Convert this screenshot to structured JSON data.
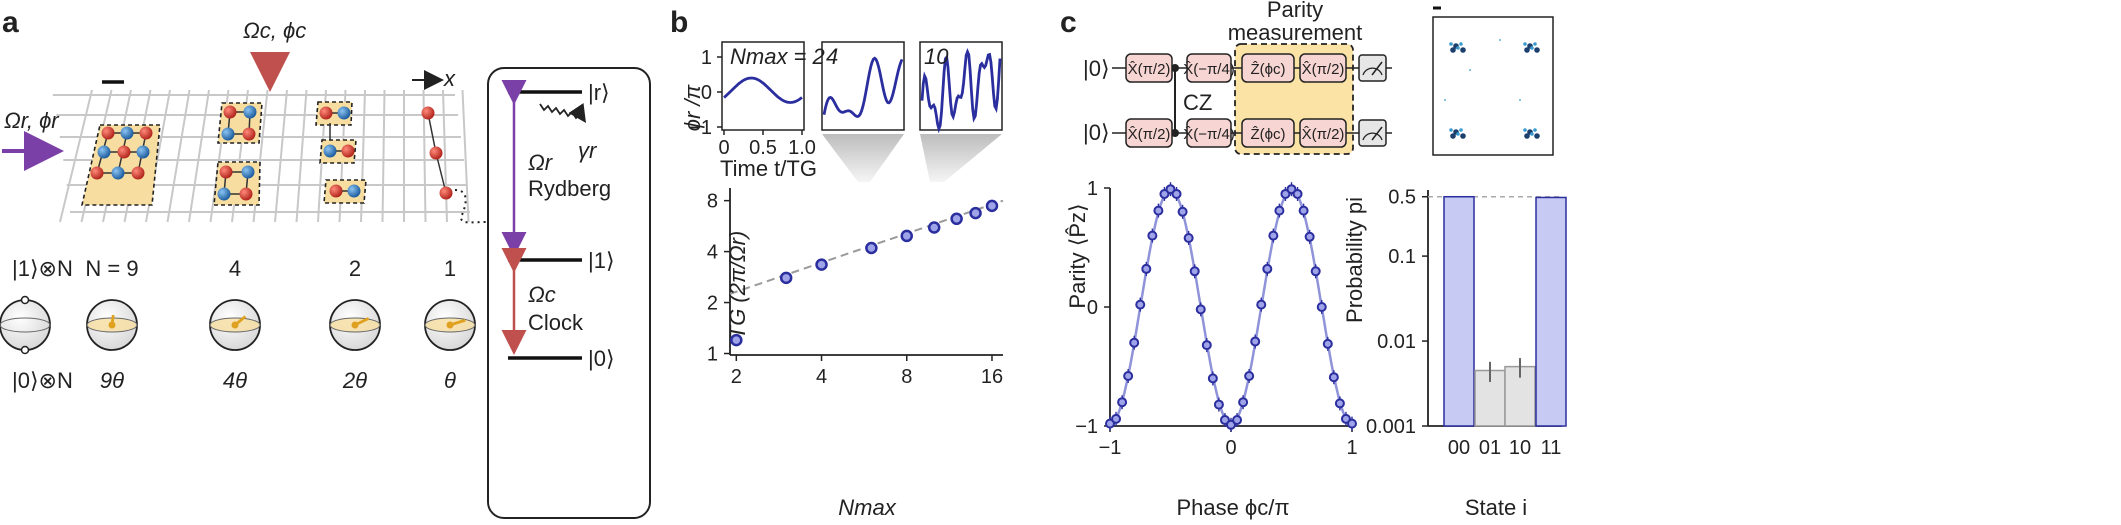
{
  "panel_labels": {
    "a": "a",
    "b": "b",
    "c": "c"
  },
  "panel_a": {
    "control_label": "Ωc, ϕc",
    "rydberg_drive_label": "Ωr, ϕr",
    "x_axis_label": "x",
    "bloch_top_label": "|1⟩⊗N",
    "bloch_bottom_label": "|0⟩⊗N",
    "cluster_sizes": [
      "N = 9",
      "4",
      "2",
      "1"
    ],
    "phase_labels": [
      "9θ",
      "4θ",
      "2θ",
      "θ"
    ],
    "level_r": "|r⟩",
    "level_1": "|1⟩",
    "level_0": "|0⟩",
    "decay_label": "γr",
    "rydberg_coupling": "Ωr",
    "rydberg_name": "Rydberg",
    "clock_coupling": "Ωc",
    "clock_name": "Clock",
    "colors": {
      "rydberg": "#7b3fa8",
      "clock": "#c0504d",
      "atom_red": "#c0392b",
      "atom_blue": "#2f7fc1",
      "highlight": "#f7deA0"
    }
  },
  "panel_b": {
    "top_ylabel": "ϕr /π",
    "top_xlabel": "Time t/TG",
    "top_panels": [
      "Nmax = 2",
      "4",
      "10"
    ],
    "top_yticks": [
      "1",
      "0",
      "−1"
    ],
    "top_xticks": [
      "0",
      "0.5",
      "1.0"
    ],
    "chart_data": {
      "type": "scatter",
      "title": "",
      "xlabel": "Nmax",
      "ylabel": "TG (2π/Ωr)",
      "xscale": "log",
      "yscale": "log",
      "xlim": [
        1.9,
        17.5
      ],
      "ylim": [
        0.98,
        9.5
      ],
      "xticks": [
        2,
        4,
        8,
        16
      ],
      "yticks": [
        1,
        2,
        4,
        8
      ],
      "series": [
        {
          "name": "data",
          "x": [
            2,
            3,
            4,
            6,
            8,
            10,
            12,
            14,
            16
          ],
          "y": [
            1.2,
            2.8,
            3.35,
            4.2,
            4.95,
            5.55,
            6.25,
            6.75,
            7.45
          ]
        },
        {
          "name": "fit",
          "style": "dashed",
          "x": [
            1.9,
            17.5
          ],
          "y": [
            2.25,
            8.0
          ]
        }
      ]
    }
  },
  "panel_c": {
    "parity_title": "Parity\nmeasurement",
    "parity_title_line1": "Parity",
    "parity_title_line2": "measurement",
    "input_state_top": "|0⟩",
    "input_state_bottom": "|0⟩",
    "gates_row": [
      "X̂(π/2)",
      "X̂(−π/4)",
      "Ẑ(ϕc)",
      "X̂(π/2)"
    ],
    "cz_label": "CZ",
    "parity_chart": {
      "type": "scatter",
      "xlabel": "Phase ϕc/π",
      "ylabel": "Parity ⟨P̂z⟩",
      "xlim": [
        -1,
        1
      ],
      "ylim": [
        -1,
        1
      ],
      "xticks": [
        -1,
        0,
        1
      ],
      "yticks": [
        -1,
        0,
        1
      ],
      "x": [
        -1.0,
        -0.95,
        -0.9,
        -0.85,
        -0.8,
        -0.75,
        -0.7,
        -0.65,
        -0.6,
        -0.55,
        -0.5,
        -0.45,
        -0.4,
        -0.35,
        -0.3,
        -0.25,
        -0.2,
        -0.15,
        -0.1,
        -0.05,
        0.0,
        0.05,
        0.1,
        0.15,
        0.2,
        0.25,
        0.3,
        0.35,
        0.4,
        0.45,
        0.5,
        0.55,
        0.6,
        0.65,
        0.7,
        0.75,
        0.8,
        0.85,
        0.9,
        0.95,
        1.0
      ],
      "y": [
        -0.98,
        -0.94,
        -0.8,
        -0.58,
        -0.3,
        0.02,
        0.32,
        0.6,
        0.81,
        0.95,
        0.99,
        0.95,
        0.8,
        0.58,
        0.3,
        -0.02,
        -0.32,
        -0.6,
        -0.82,
        -0.95,
        -0.99,
        -0.95,
        -0.8,
        -0.58,
        -0.29,
        0.02,
        0.32,
        0.6,
        0.81,
        0.95,
        0.99,
        0.95,
        0.81,
        0.59,
        0.3,
        0.0,
        -0.31,
        -0.59,
        -0.81,
        -0.94,
        -0.98
      ]
    },
    "probability_chart": {
      "type": "bar",
      "xlabel": "State i",
      "ylabel": "Probability pi",
      "yscale": "log",
      "ylim": [
        0.001,
        0.6
      ],
      "yticks": [
        "0.5",
        "0.1",
        "0.01",
        "0.001"
      ],
      "categories": [
        "00",
        "01",
        "10",
        "11"
      ],
      "values": [
        0.5,
        0.0045,
        0.005,
        0.49
      ],
      "errors": [
        0.0,
        0.0012,
        0.0013,
        0.0
      ]
    }
  }
}
